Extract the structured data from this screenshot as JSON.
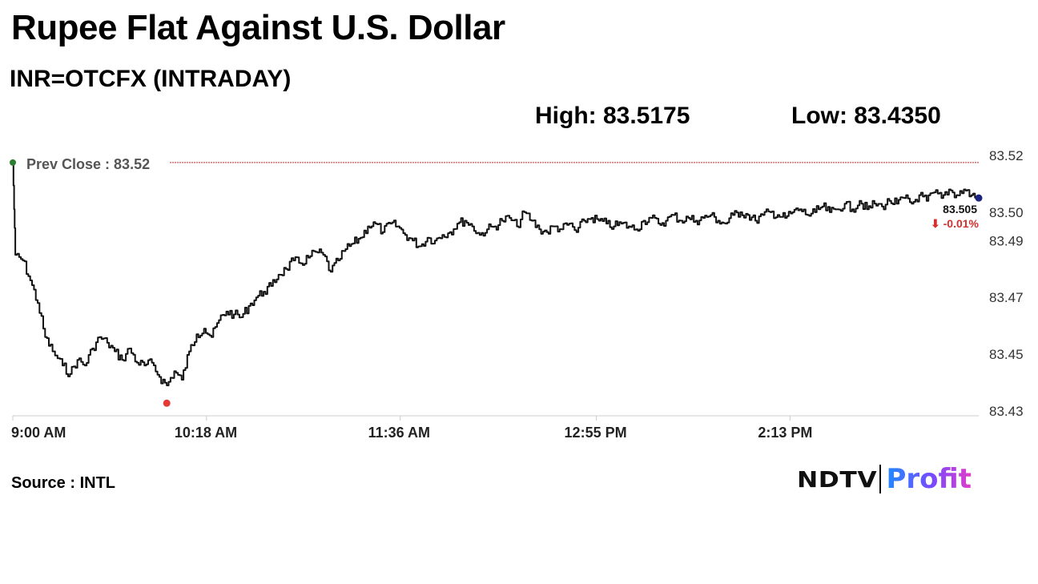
{
  "header": {
    "title": "Rupee Flat Against U.S. Dollar",
    "subtitle": "INR=OTCFX (INTRADAY)",
    "high_label": "High: 83.5175",
    "low_label": "Low: 83.4350"
  },
  "footer": {
    "source": "Source : INTL",
    "logo_left": "NDTV",
    "logo_right": "Profit"
  },
  "colors": {
    "line": "#111111",
    "prev_close_line": "#c62828",
    "open_dot": "#2e7d32",
    "low_dot": "#e53935",
    "last_dot": "#1a237e",
    "change_negative": "#d32f2f",
    "axis": "#cccccc"
  },
  "chart_data": {
    "type": "line",
    "title": "Rupee Flat Against U.S. Dollar",
    "subtitle": "INR=OTCFX (INTRADAY)",
    "xlabel": "",
    "ylabel": "",
    "x_ticks": [
      "9:00 AM",
      "10:18 AM",
      "11:36 AM",
      "12:55 PM",
      "2:13 PM"
    ],
    "y_ticks": [
      "83.52",
      "83.50",
      "83.49",
      "83.47",
      "83.45",
      "83.43"
    ],
    "ylim": [
      83.43,
      83.52
    ],
    "x_start": "9:00 AM",
    "x_end": "3:29 PM",
    "prev_close": 83.5175,
    "prev_close_label": "Prev Close : 83.52",
    "high": 83.5175,
    "low": 83.435,
    "last_value": "83.505",
    "change": "⬇ -0.01%",
    "grid": false,
    "series": [
      {
        "points": [
          [
            "9:00 AM",
            83.5175
          ],
          [
            "9:01 AM",
            83.485
          ],
          [
            "9:04 AM",
            83.483
          ],
          [
            "9:07 AM",
            83.476
          ],
          [
            "9:10 AM",
            83.468
          ],
          [
            "9:13 AM",
            83.456
          ],
          [
            "9:16 AM",
            83.451
          ],
          [
            "9:20 AM",
            83.446
          ],
          [
            "9:23 AM",
            83.443
          ],
          [
            "9:26 AM",
            83.448
          ],
          [
            "9:29 AM",
            83.446
          ],
          [
            "9:32 AM",
            83.452
          ],
          [
            "9:35 AM",
            83.456
          ],
          [
            "9:38 AM",
            83.454
          ],
          [
            "9:41 AM",
            83.451
          ],
          [
            "9:44 AM",
            83.448
          ],
          [
            "9:47 AM",
            83.452
          ],
          [
            "9:50 AM",
            83.447
          ],
          [
            "9:53 AM",
            83.446
          ],
          [
            "9:56 AM",
            83.447
          ],
          [
            "9:59 AM",
            83.442
          ],
          [
            "10:02 AM",
            83.439
          ],
          [
            "10:05 AM",
            83.444
          ],
          [
            "10:08 AM",
            83.441
          ],
          [
            "10:11 AM",
            83.451
          ],
          [
            "10:14 AM",
            83.457
          ],
          [
            "10:17 AM",
            83.459
          ],
          [
            "10:20 AM",
            83.456
          ],
          [
            "10:23 AM",
            83.462
          ],
          [
            "10:26 AM",
            83.465
          ],
          [
            "10:29 AM",
            83.464
          ],
          [
            "10:32 AM",
            83.463
          ],
          [
            "10:35 AM",
            83.467
          ],
          [
            "10:38 AM",
            83.47
          ],
          [
            "10:41 AM",
            83.472
          ],
          [
            "10:44 AM",
            83.474
          ],
          [
            "10:47 AM",
            83.478
          ],
          [
            "10:50 AM",
            83.48
          ],
          [
            "10:53 AM",
            83.483
          ],
          [
            "10:56 AM",
            83.482
          ],
          [
            "10:59 AM",
            83.484
          ],
          [
            "11:02 AM",
            83.486
          ],
          [
            "11:05 AM",
            83.485
          ],
          [
            "11:08 AM",
            83.479
          ],
          [
            "11:11 AM",
            83.483
          ],
          [
            "11:14 AM",
            83.487
          ],
          [
            "11:17 AM",
            83.489
          ],
          [
            "11:20 AM",
            83.491
          ],
          [
            "11:23 AM",
            83.495
          ],
          [
            "11:26 AM",
            83.496
          ],
          [
            "11:29 AM",
            83.493
          ],
          [
            "11:32 AM",
            83.496
          ],
          [
            "11:35 AM",
            83.495
          ],
          [
            "11:38 AM",
            83.492
          ],
          [
            "11:41 AM",
            83.49
          ],
          [
            "11:44 AM",
            83.488
          ],
          [
            "11:47 AM",
            83.491
          ],
          [
            "11:50 AM",
            83.49
          ],
          [
            "11:53 AM",
            83.492
          ],
          [
            "11:56 AM",
            83.493
          ],
          [
            "11:59 AM",
            83.496
          ],
          [
            "12:02 PM",
            83.497
          ],
          [
            "12:05 PM",
            83.495
          ],
          [
            "12:08 PM",
            83.492
          ],
          [
            "12:11 PM",
            83.494
          ],
          [
            "12:14 PM",
            83.495
          ],
          [
            "12:17 PM",
            83.497
          ],
          [
            "12:20 PM",
            83.498
          ],
          [
            "12:23 PM",
            83.495
          ],
          [
            "12:26 PM",
            83.5
          ],
          [
            "12:29 PM",
            83.497
          ],
          [
            "12:32 PM",
            83.494
          ],
          [
            "12:35 PM",
            83.493
          ],
          [
            "12:38 PM",
            83.495
          ],
          [
            "12:41 PM",
            83.494
          ],
          [
            "12:44 PM",
            83.496
          ],
          [
            "12:47 PM",
            83.493
          ],
          [
            "12:50 PM",
            83.497
          ],
          [
            "12:53 PM",
            83.498
          ],
          [
            "12:56 PM",
            83.497
          ],
          [
            "12:59 PM",
            83.496
          ],
          [
            "1:02 PM",
            83.495
          ],
          [
            "1:05 PM",
            83.496
          ],
          [
            "1:08 PM",
            83.495
          ],
          [
            "1:11 PM",
            83.494
          ],
          [
            "1:14 PM",
            83.497
          ],
          [
            "1:17 PM",
            83.498
          ],
          [
            "1:20 PM",
            83.496
          ],
          [
            "1:23 PM",
            83.497
          ],
          [
            "1:26 PM",
            83.499
          ],
          [
            "1:29 PM",
            83.497
          ],
          [
            "1:32 PM",
            83.498
          ],
          [
            "1:35 PM",
            83.497
          ],
          [
            "1:38 PM",
            83.498
          ],
          [
            "1:41 PM",
            83.499
          ],
          [
            "1:44 PM",
            83.497
          ],
          [
            "1:47 PM",
            83.496
          ],
          [
            "1:50 PM",
            83.499
          ],
          [
            "1:53 PM",
            83.5
          ],
          [
            "1:56 PM",
            83.499
          ],
          [
            "1:59 PM",
            83.497
          ],
          [
            "2:02 PM",
            83.499
          ],
          [
            "2:05 PM",
            83.5
          ],
          [
            "2:08 PM",
            83.499
          ],
          [
            "2:11 PM",
            83.498
          ],
          [
            "2:14 PM",
            83.5
          ],
          [
            "2:17 PM",
            83.501
          ],
          [
            "2:20 PM",
            83.499
          ],
          [
            "2:23 PM",
            83.5
          ],
          [
            "2:26 PM",
            83.502
          ],
          [
            "2:29 PM",
            83.5
          ],
          [
            "2:32 PM",
            83.501
          ],
          [
            "2:35 PM",
            83.503
          ],
          [
            "2:38 PM",
            83.501
          ],
          [
            "2:41 PM",
            83.504
          ],
          [
            "2:44 PM",
            83.501
          ],
          [
            "2:47 PM",
            83.503
          ],
          [
            "2:50 PM",
            83.502
          ],
          [
            "2:53 PM",
            83.504
          ],
          [
            "2:56 PM",
            83.503
          ],
          [
            "2:59 PM",
            83.505
          ],
          [
            "3:02 PM",
            83.503
          ],
          [
            "3:05 PM",
            83.506
          ],
          [
            "3:08 PM",
            83.504
          ],
          [
            "3:11 PM",
            83.507
          ],
          [
            "3:14 PM",
            83.505
          ],
          [
            "3:17 PM",
            83.508
          ],
          [
            "3:20 PM",
            83.506
          ],
          [
            "3:23 PM",
            83.508
          ],
          [
            "3:26 PM",
            83.506
          ],
          [
            "3:29 PM",
            83.505
          ]
        ]
      }
    ]
  }
}
